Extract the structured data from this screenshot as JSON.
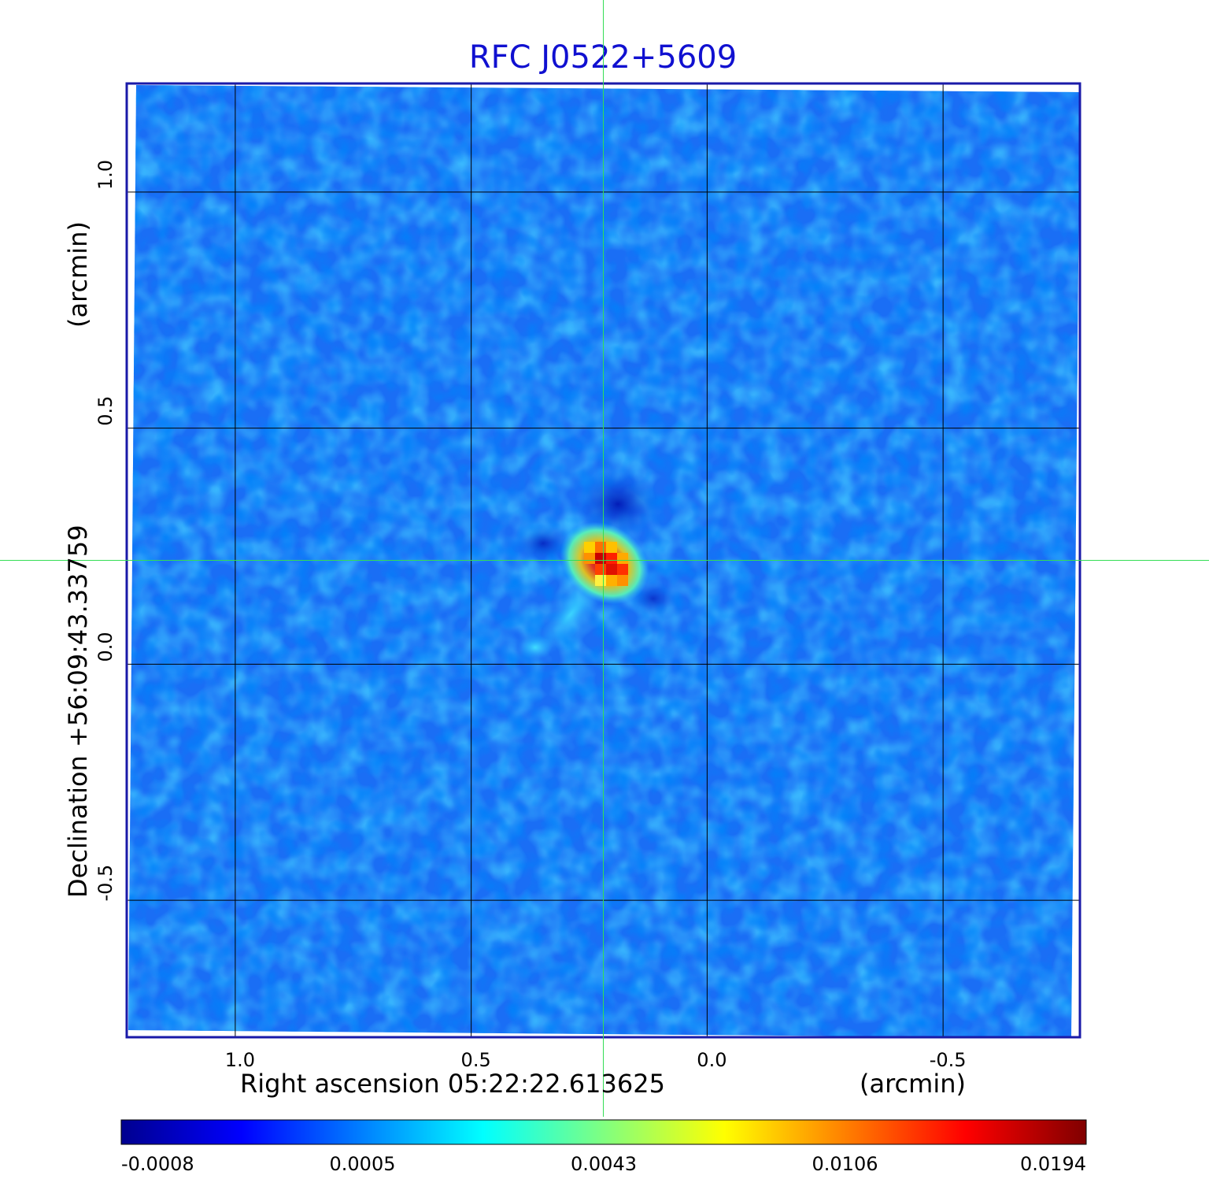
{
  "title": "RFC J0522+5609",
  "title_color": "#1010d0",
  "frame_color": "#1a1aa8",
  "grid_color": "#000000",
  "crosshair_color": "#33dd55",
  "x_axis": {
    "label": "Right ascension  05:22:22.613625",
    "unit": "(arcmin)",
    "ticks": [
      {
        "value": 1.0,
        "label": "1.0"
      },
      {
        "value": 0.5,
        "label": "0.5"
      },
      {
        "value": 0.0,
        "label": "0.0"
      },
      {
        "value": -0.5,
        "label": "-0.5"
      }
    ],
    "range": [
      1.23,
      -0.79
    ]
  },
  "y_axis": {
    "label": "Declination  +56:09:43.33759",
    "unit": "(arcmin)",
    "ticks": [
      {
        "value": 1.0,
        "label": "1.0"
      },
      {
        "value": 0.5,
        "label": "0.5"
      },
      {
        "value": 0.0,
        "label": "0.0"
      },
      {
        "value": -0.5,
        "label": "-0.5"
      }
    ],
    "range": [
      -0.79,
      1.23
    ]
  },
  "source": {
    "ra_offset_arcmin": 0.22,
    "dec_offset_arcmin": 0.22
  },
  "colorbar": {
    "ticks": [
      "-0.0008",
      "0.0005",
      "0.0043",
      "0.0106",
      "0.0194"
    ],
    "colormap": [
      "#00008f",
      "#0000ff",
      "#0080ff",
      "#00ffff",
      "#80ff80",
      "#ffff00",
      "#ff8000",
      "#ff0000",
      "#800000"
    ]
  }
}
